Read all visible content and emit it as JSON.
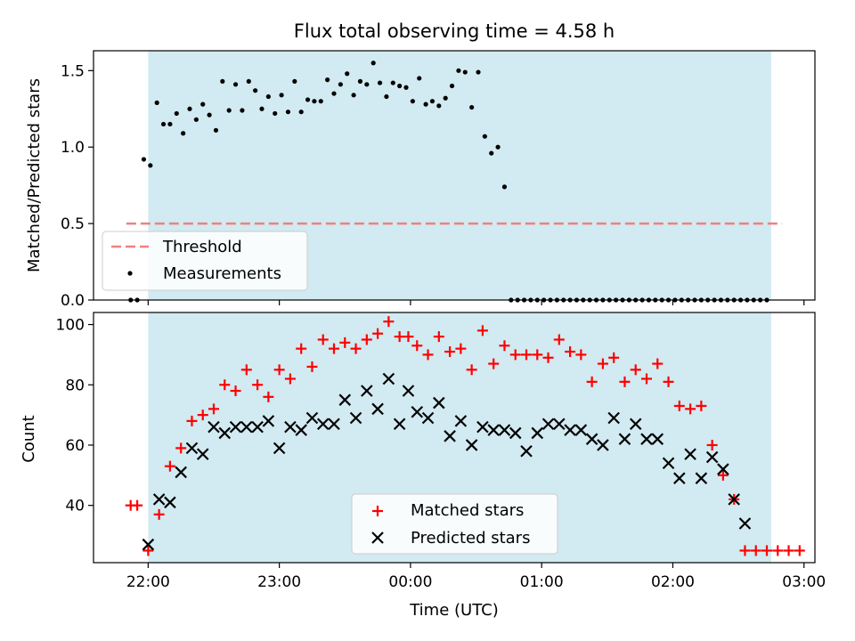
{
  "chart_data": [
    {
      "type": "scatter",
      "title": "Flux total observing time = 4.58 h",
      "ylabel": "Matched/Predicted stars",
      "xlabel": "",
      "xlim": [
        "21:35",
        "03:05"
      ],
      "ylim": [
        0,
        1.63
      ],
      "yticks": [
        "0.0",
        "0.5",
        "1.0",
        "1.5"
      ],
      "yticks_values": [
        0,
        0.5,
        1.0,
        1.5
      ],
      "xticks": [
        "22:00",
        "23:00",
        "00:00",
        "01:00",
        "02:00",
        "03:00"
      ],
      "shaded_span": [
        "22:00",
        "02:45"
      ],
      "shade_color": "#add8e6",
      "threshold": {
        "label": "Threshold",
        "value": 0.5,
        "x_range": [
          "21:50",
          "02:50"
        ],
        "color": "#f08080"
      },
      "legend": {
        "placement": "lower-left",
        "entries": [
          "Threshold",
          "Measurements"
        ]
      },
      "series": [
        {
          "name": "Measurements",
          "marker": "dot",
          "color": "#000000",
          "x": [
            "21:52",
            "21:55",
            "21:58",
            "22:01",
            "22:04",
            "22:07",
            "22:10",
            "22:13",
            "22:16",
            "22:19",
            "22:22",
            "22:25",
            "22:28",
            "22:31",
            "22:34",
            "22:37",
            "22:40",
            "22:43",
            "22:46",
            "22:49",
            "22:52",
            "22:55",
            "22:58",
            "23:01",
            "23:04",
            "23:07",
            "23:10",
            "23:13",
            "23:16",
            "23:19",
            "23:22",
            "23:25",
            "23:28",
            "23:31",
            "23:34",
            "23:37",
            "23:40",
            "23:43",
            "23:46",
            "23:49",
            "23:52",
            "23:55",
            "23:58",
            "00:01",
            "00:04",
            "00:07",
            "00:10",
            "00:13",
            "00:16",
            "00:19",
            "00:22",
            "00:25",
            "00:28",
            "00:31",
            "00:34",
            "00:37",
            "00:40",
            "00:43",
            "00:46",
            "00:49",
            "00:52",
            "00:55",
            "00:58",
            "01:01",
            "01:04",
            "01:07",
            "01:10",
            "01:13",
            "01:16",
            "01:19",
            "01:22",
            "01:25",
            "01:28",
            "01:31",
            "01:34",
            "01:37",
            "01:40",
            "01:43",
            "01:46",
            "01:49",
            "01:52",
            "01:55",
            "01:58",
            "02:01",
            "02:04",
            "02:07",
            "02:10",
            "02:13",
            "02:16",
            "02:19",
            "02:22",
            "02:25",
            "02:28",
            "02:31",
            "02:34",
            "02:37",
            "02:40",
            "02:43"
          ],
          "y": [
            0.0,
            0.0,
            0.92,
            0.88,
            1.29,
            1.15,
            1.15,
            1.22,
            1.09,
            1.25,
            1.18,
            1.28,
            1.21,
            1.11,
            1.43,
            1.24,
            1.41,
            1.24,
            1.43,
            1.37,
            1.25,
            1.33,
            1.22,
            1.34,
            1.23,
            1.43,
            1.23,
            1.31,
            1.3,
            1.3,
            1.44,
            1.35,
            1.41,
            1.48,
            1.34,
            1.43,
            1.41,
            1.55,
            1.42,
            1.33,
            1.42,
            1.4,
            1.39,
            1.3,
            1.45,
            1.28,
            1.3,
            1.27,
            1.32,
            1.4,
            1.5,
            1.49,
            1.26,
            1.49,
            1.07,
            0.96,
            1.0,
            0.74,
            0.0,
            0.0,
            0.0,
            0.0,
            0.0,
            0.0,
            0.0,
            0.0,
            0.0,
            0.0,
            0.0,
            0.0,
            0.0,
            0.0,
            0.0,
            0.0,
            0.0,
            0.0,
            0.0,
            0.0,
            0.0,
            0.0,
            0.0,
            0.0,
            0.0,
            0.0,
            0.0,
            0.0,
            0.0,
            0.0,
            0.0,
            0.0,
            0.0,
            0.0,
            0.0,
            0.0,
            0.0,
            0.0,
            0.0,
            0.0
          ]
        }
      ]
    },
    {
      "type": "scatter",
      "title": "",
      "ylabel": "Count",
      "xlabel": "Time (UTC)",
      "xlim": [
        "21:35",
        "03:05"
      ],
      "ylim": [
        21,
        104
      ],
      "yticks": [
        "40",
        "60",
        "80",
        "100"
      ],
      "yticks_values": [
        40,
        60,
        80,
        100
      ],
      "xticks": [
        "22:00",
        "23:00",
        "00:00",
        "01:00",
        "02:00",
        "03:00"
      ],
      "shaded_span": [
        "22:00",
        "02:45"
      ],
      "shade_color": "#add8e6",
      "legend": {
        "placement": "lower-center",
        "entries": [
          "Matched stars",
          "Predicted stars"
        ]
      },
      "series": [
        {
          "name": "Matched stars",
          "marker": "plus",
          "color": "#ff0000",
          "x": [
            "21:52",
            "21:55",
            "22:00",
            "22:05",
            "22:10",
            "22:15",
            "22:20",
            "22:25",
            "22:30",
            "22:35",
            "22:40",
            "22:45",
            "22:50",
            "22:55",
            "23:00",
            "23:05",
            "23:10",
            "23:15",
            "23:20",
            "23:25",
            "23:30",
            "23:35",
            "23:40",
            "23:45",
            "23:50",
            "23:55",
            "23:59",
            "00:03",
            "00:08",
            "00:13",
            "00:18",
            "00:23",
            "00:28",
            "00:33",
            "00:38",
            "00:43",
            "00:48",
            "00:53",
            "00:58",
            "01:03",
            "01:08",
            "01:13",
            "01:18",
            "01:23",
            "01:28",
            "01:33",
            "01:38",
            "01:43",
            "01:48",
            "01:53",
            "01:58",
            "02:03",
            "02:08",
            "02:13",
            "02:18",
            "02:23",
            "02:28",
            "02:33",
            "02:38",
            "02:43",
            "02:48",
            "02:53",
            "02:58"
          ],
          "y": [
            40,
            40,
            25,
            37,
            53,
            59,
            68,
            70,
            72,
            80,
            78,
            85,
            80,
            76,
            85,
            82,
            92,
            86,
            95,
            92,
            94,
            92,
            95,
            97,
            101,
            96,
            96,
            93,
            90,
            96,
            91,
            92,
            85,
            98,
            87,
            93,
            90,
            90,
            90,
            89,
            95,
            91,
            90,
            81,
            87,
            89,
            81,
            85,
            82,
            87,
            81,
            73,
            72,
            73,
            60,
            50,
            42,
            25,
            25,
            25,
            25,
            25,
            25
          ]
        },
        {
          "name": "Predicted stars",
          "marker": "x",
          "color": "#000000",
          "x": [
            "22:00",
            "22:05",
            "22:10",
            "22:15",
            "22:20",
            "22:25",
            "22:30",
            "22:35",
            "22:40",
            "22:45",
            "22:50",
            "22:55",
            "23:00",
            "23:05",
            "23:10",
            "23:15",
            "23:20",
            "23:25",
            "23:30",
            "23:35",
            "23:40",
            "23:45",
            "23:50",
            "23:55",
            "23:59",
            "00:03",
            "00:08",
            "00:13",
            "00:18",
            "00:23",
            "00:28",
            "00:33",
            "00:38",
            "00:43",
            "00:48",
            "00:53",
            "00:58",
            "01:03",
            "01:08",
            "01:13",
            "01:18",
            "01:23",
            "01:28",
            "01:33",
            "01:38",
            "01:43",
            "01:48",
            "01:53",
            "01:58",
            "02:03",
            "02:08",
            "02:13",
            "02:18",
            "02:23",
            "02:28",
            "02:33"
          ],
          "y": [
            27,
            42,
            41,
            51,
            59,
            57,
            66,
            64,
            66,
            66,
            66,
            68,
            59,
            66,
            65,
            69,
            67,
            67,
            75,
            69,
            78,
            72,
            82,
            67,
            78,
            71,
            69,
            74,
            63,
            68,
            60,
            66,
            65,
            65,
            64,
            58,
            64,
            67,
            67,
            65,
            65,
            62,
            60,
            69,
            62,
            67,
            62,
            62,
            54,
            49,
            57,
            49,
            56,
            52,
            42,
            34
          ]
        }
      ]
    }
  ]
}
